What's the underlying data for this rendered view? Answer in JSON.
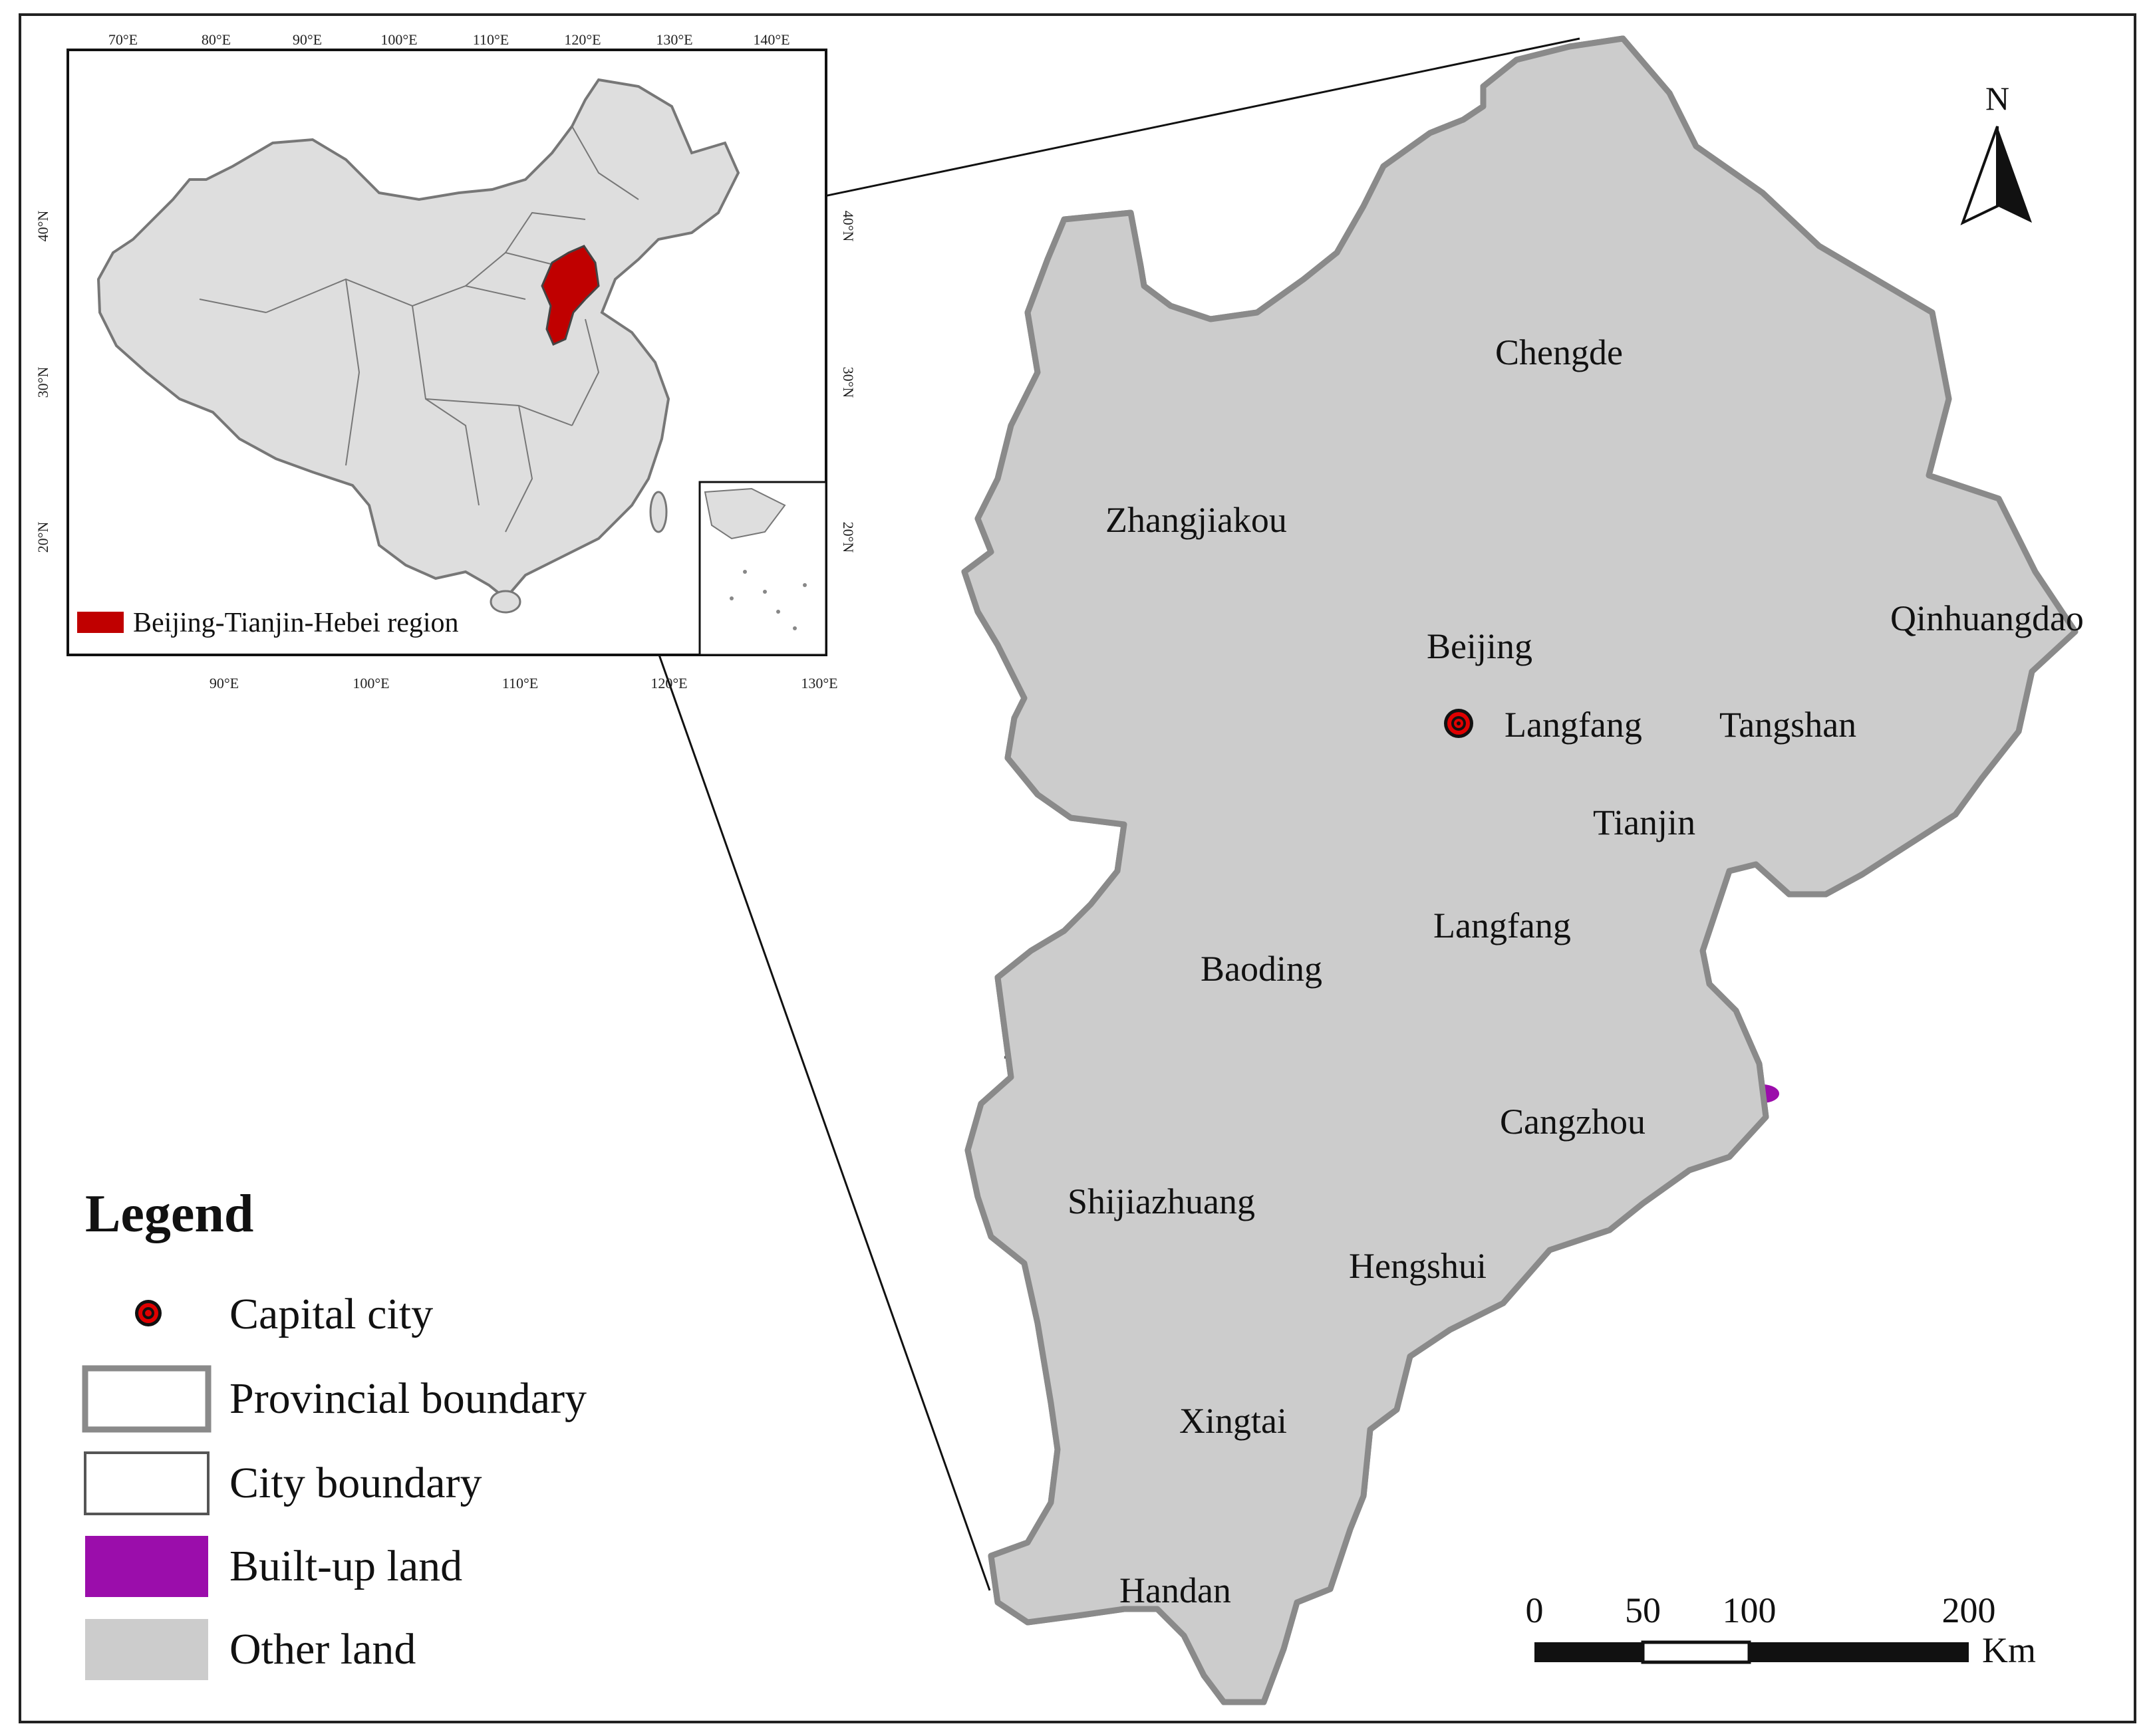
{
  "inset": {
    "lon_ticks_top": [
      "70°E",
      "80°E",
      "90°E",
      "100°E",
      "110°E",
      "120°E",
      "130°E",
      "140°E"
    ],
    "lon_ticks_bottom": [
      "90°E",
      "100°E",
      "110°E",
      "120°E",
      "130°E"
    ],
    "lat_ticks_left": [
      "40°N",
      "30°N",
      "20°N"
    ],
    "lat_ticks_right": [
      "40°N",
      "30°N",
      "20°N"
    ],
    "legend_label": "Beijing-Tianjin-Hebei region"
  },
  "cities": {
    "chengde": "Chengde",
    "zhangjiakou": "Zhangjiakou",
    "beijing": "Beijing",
    "langfang_north": "Langfang",
    "tangshan": "Tangshan",
    "qinhuangdao": "Qinhuangdao",
    "tianjin": "Tianjin",
    "langfang_south": "Langfang",
    "baoding": "Baoding",
    "cangzhou": "Cangzhou",
    "shijiazhuang": "Shijiazhuang",
    "hengshui": "Hengshui",
    "xingtai": "Xingtai",
    "handan": "Handan"
  },
  "north_arrow": {
    "label": "N"
  },
  "scale_bar": {
    "ticks": [
      "0",
      "50",
      "100",
      "200"
    ],
    "unit": "Km"
  },
  "legend": {
    "title": "Legend",
    "items": [
      {
        "label": "Capital city"
      },
      {
        "label": "Provincial boundary"
      },
      {
        "label": "City boundary"
      },
      {
        "label": "Built-up land"
      },
      {
        "label": "Other land"
      }
    ]
  },
  "colors": {
    "built_up": "#9b0dab",
    "other_land": "#cccccc",
    "inset_region": "#c00000",
    "china_fill": "#dedede",
    "boundary": "#555555"
  }
}
